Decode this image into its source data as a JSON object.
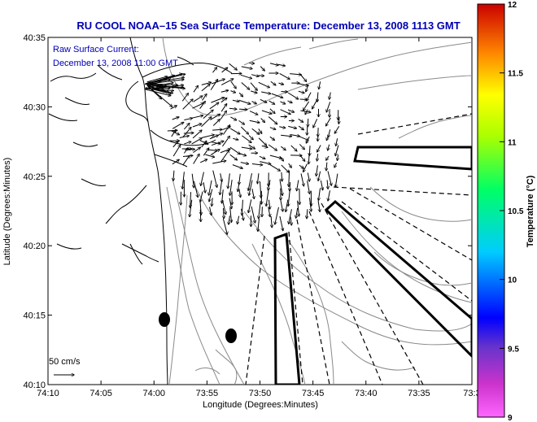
{
  "title": "RU COOL  NOAA–15  Sea Surface Temperature:  December 13, 2008 1113 GMT",
  "current_label": "Raw Surface Current:",
  "current_time": "December 13, 2008 11:00 GMT",
  "scale_label": "50 cm/s",
  "xlabel": "Longitude (Degrees:Minutes)",
  "ylabel": "Latitude (Degrees:Minutes)",
  "x_ticks": [
    "74:10",
    "74:05",
    "74:00",
    "73:55",
    "73:50",
    "73:45",
    "73:40",
    "73:35",
    "73:3"
  ],
  "y_ticks": [
    "40:35",
    "40:30",
    "40:25",
    "40:20",
    "40:15",
    "40:10"
  ],
  "colorbar": {
    "label": "Temperature (°C)",
    "ticks": [
      "12",
      "11.5",
      "11",
      "10.5",
      "10",
      "9.5",
      "9"
    ],
    "range": [
      9,
      12
    ]
  },
  "colors": {
    "title": "#0000b4",
    "annotation": "#0000b4",
    "land_contour": "#000000",
    "depth_contour": "#888888"
  }
}
